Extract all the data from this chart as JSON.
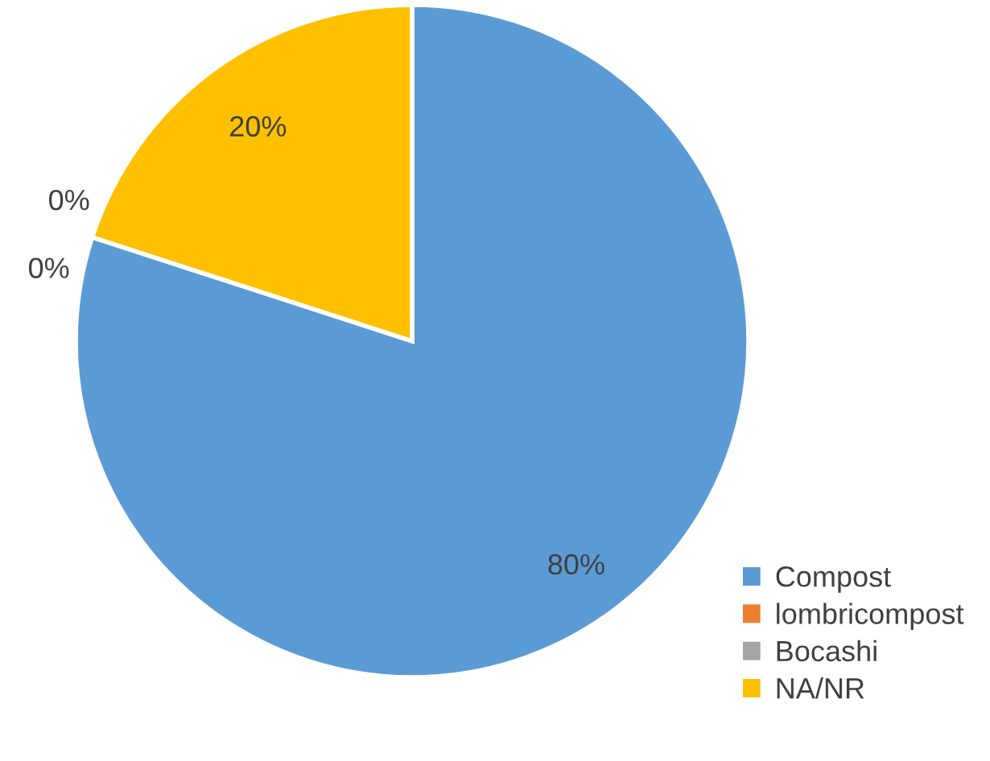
{
  "chart_data": {
    "type": "pie",
    "categories": [
      "Compost",
      "lombricompost",
      "Bocashi",
      "NA/NR"
    ],
    "values": [
      80,
      0,
      0,
      20
    ],
    "colors": [
      "#5b9bd5",
      "#ed7d31",
      "#a5a5a5",
      "#ffc000"
    ],
    "value_labels": [
      "80%",
      "0%",
      "0%",
      "20%"
    ],
    "legend": "bottom right"
  }
}
